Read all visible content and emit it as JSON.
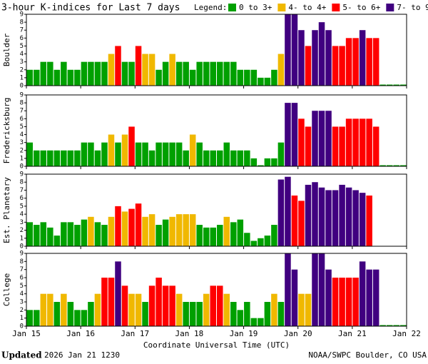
{
  "header": {
    "title": "3-hour K-indices for Last 7 days",
    "legend_label": "Legend:",
    "legend": [
      {
        "name": "0 to 3+",
        "color": "#00a000"
      },
      {
        "name": "4- to 4+",
        "color": "#f0b800"
      },
      {
        "name": "5- to 6+",
        "color": "#ff0000"
      },
      {
        "name": "7- to 9",
        "color": "#400080"
      }
    ]
  },
  "chart_data": [
    {
      "type": "bar",
      "ylabel": "Boulder",
      "ylim": [
        0,
        9
      ],
      "yticks": [
        0,
        1,
        2,
        3,
        4,
        5,
        6,
        7,
        8,
        9
      ],
      "xlim": [
        15,
        22
      ],
      "values": [
        2,
        2,
        3,
        3,
        2,
        3,
        2,
        2,
        3,
        3,
        3,
        3,
        4,
        5,
        3,
        3,
        5,
        4,
        4,
        2,
        3,
        4,
        3,
        3,
        2,
        3,
        3,
        3,
        3,
        3,
        3,
        2,
        2,
        2,
        1,
        1,
        2,
        4,
        9,
        9,
        7,
        5,
        7,
        8,
        7,
        5,
        5,
        6,
        6,
        7,
        6,
        6,
        0,
        0,
        0,
        0
      ]
    },
    {
      "type": "bar",
      "ylabel": "Fredericksburg",
      "ylim": [
        0,
        9
      ],
      "yticks": [
        0,
        1,
        2,
        3,
        4,
        5,
        6,
        7,
        8,
        9
      ],
      "xlim": [
        15,
        22
      ],
      "values": [
        3,
        2,
        2,
        2,
        2,
        2,
        2,
        2,
        3,
        3,
        2,
        3,
        4,
        3,
        4,
        5,
        3,
        3,
        2,
        3,
        3,
        3,
        3,
        2,
        4,
        3,
        2,
        2,
        2,
        3,
        2,
        2,
        2,
        1,
        0,
        1,
        1,
        3,
        8,
        8,
        6,
        5,
        7,
        7,
        7,
        5,
        5,
        6,
        6,
        6,
        6,
        5,
        0,
        0,
        0,
        0
      ]
    },
    {
      "type": "bar",
      "ylabel": "Est. Planetary",
      "ylim": [
        0,
        9
      ],
      "yticks": [
        0,
        1,
        2,
        3,
        4,
        5,
        6,
        7,
        8,
        9
      ],
      "xlim": [
        15,
        22
      ],
      "values": [
        3,
        2.67,
        3,
        2.33,
        1.33,
        3,
        3,
        2.67,
        3.33,
        3.67,
        3,
        2.67,
        3.67,
        5,
        4.33,
        4.67,
        5.33,
        3.67,
        4,
        2.67,
        3.33,
        3.67,
        4,
        4,
        4,
        2.67,
        2.33,
        2.33,
        2.67,
        3.67,
        3,
        3.33,
        1.67,
        0.67,
        1,
        1.33,
        2.67,
        8.33,
        8.67,
        6.33,
        5.67,
        7.67,
        8,
        7.33,
        7,
        7,
        7.67,
        7.33,
        7,
        6.67,
        6.33,
        null,
        null,
        null,
        null,
        null
      ]
    },
    {
      "type": "bar",
      "ylabel": "College",
      "ylim": [
        0,
        9
      ],
      "yticks": [
        0,
        1,
        2,
        3,
        4,
        5,
        6,
        7,
        8,
        9
      ],
      "xlim": [
        15,
        22
      ],
      "values": [
        2,
        2,
        4,
        4,
        3,
        4,
        3,
        2,
        2,
        3,
        4,
        6,
        6,
        8,
        5,
        4,
        4,
        3,
        5,
        6,
        5,
        5,
        4,
        3,
        3,
        3,
        4,
        5,
        5,
        4,
        3,
        2,
        3,
        1,
        1,
        3,
        4,
        3,
        9,
        7,
        4,
        4,
        9,
        9,
        7,
        6,
        6,
        6,
        6,
        8,
        7,
        7,
        0,
        0,
        0,
        0
      ],
      "xticks": [
        {
          "value": 15,
          "label": "Jan 15"
        },
        {
          "value": 16,
          "label": "Jan 16"
        },
        {
          "value": 17,
          "label": "Jan 17"
        },
        {
          "value": 18,
          "label": "Jan 18"
        },
        {
          "value": 19,
          "label": "Jan 19"
        },
        {
          "value": 20,
          "label": "Jan 20"
        },
        {
          "value": 21,
          "label": "Jan 21"
        },
        {
          "value": 22,
          "label": "Jan 22"
        }
      ],
      "xlabel": "Coordinate Universal Time (UTC)"
    }
  ],
  "footer": {
    "updated_label": "Updated",
    "updated": "2026 Jan 21 1230",
    "source": "NOAA/SWPC Boulder, CO USA"
  }
}
